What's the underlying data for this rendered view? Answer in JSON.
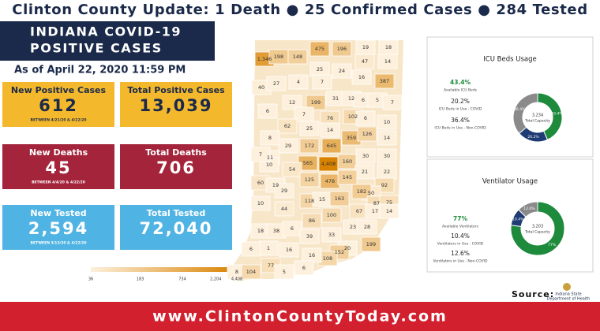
{
  "header": {
    "banner": "Clinton County Update: 1 Death ● 25 Confirmed Cases ● 284 Tested",
    "title_lines": [
      "INDIANA COVID-19",
      "POSITIVE CASES"
    ],
    "as_of": "As of April 22, 2020 11:59 PM"
  },
  "stats": [
    {
      "label": "New Positive Cases",
      "value": "612",
      "note": "BETWEEN 4/21/20 & 4/22/20",
      "color": "#f4b82c"
    },
    {
      "label": "Total Positive Cases",
      "value": "13,039",
      "color": "#f4b82c"
    },
    {
      "label": "New Deaths",
      "value": "45",
      "note": "BETWEEN 4/4/20 & 4/22/20",
      "color": "#a3243b"
    },
    {
      "label": "Total Deaths",
      "value": "706",
      "color": "#a3243b"
    },
    {
      "label": "New Tested",
      "value": "2,594",
      "note": "BETWEEN 3/13/20 & 4/22/20",
      "color": "#4fb3e3"
    },
    {
      "label": "Total Tested",
      "value": "72,040",
      "color": "#4fb3e3"
    }
  ],
  "map": {
    "counties": [
      {
        "label": "1,346",
        "value": 1346
      },
      {
        "label": "198",
        "value": 198
      },
      {
        "label": "148",
        "value": 148
      },
      {
        "label": "475",
        "value": 475
      },
      {
        "label": "196",
        "value": 196
      },
      {
        "label": "19",
        "value": 19
      },
      {
        "label": "18",
        "value": 18
      },
      {
        "label": "47",
        "value": 47
      },
      {
        "label": "14",
        "value": 14
      },
      {
        "label": "25",
        "value": 25
      },
      {
        "label": "24",
        "value": 24
      },
      {
        "label": "16",
        "value": 16
      },
      {
        "label": "387",
        "value": 387
      },
      {
        "label": "40",
        "value": 40
      },
      {
        "label": "27",
        "value": 27
      },
      {
        "label": "4",
        "value": 4
      },
      {
        "label": "7",
        "value": 7
      },
      {
        "label": "12",
        "value": 12
      },
      {
        "label": "199",
        "value": 199
      },
      {
        "label": "31",
        "value": 31
      },
      {
        "label": "12",
        "value": 12
      },
      {
        "label": "6",
        "value": 6
      },
      {
        "label": "5",
        "value": 5
      },
      {
        "label": "7",
        "value": 7
      },
      {
        "label": "6",
        "value": 6
      },
      {
        "label": "7",
        "value": 7
      },
      {
        "label": "76",
        "value": 76
      },
      {
        "label": "102",
        "value": 102
      },
      {
        "label": "6",
        "value": 6
      },
      {
        "label": "10",
        "value": 10
      },
      {
        "label": "62",
        "value": 62
      },
      {
        "label": "25",
        "value": 25
      },
      {
        "label": "14",
        "value": 14
      },
      {
        "label": "8",
        "value": 8
      },
      {
        "label": "359",
        "value": 359
      },
      {
        "label": "126",
        "value": 126
      },
      {
        "label": "14",
        "value": 14
      },
      {
        "label": "29",
        "value": 29
      },
      {
        "label": "172",
        "value": 172
      },
      {
        "label": "645",
        "value": 645
      },
      {
        "label": "11",
        "value": 11
      },
      {
        "label": "10",
        "value": 10
      },
      {
        "label": "7",
        "value": 7
      },
      {
        "label": "565",
        "value": 565
      },
      {
        "label": "4,408",
        "value": 4408
      },
      {
        "label": "160",
        "value": 160
      },
      {
        "label": "30",
        "value": 30
      },
      {
        "label": "30",
        "value": 30
      },
      {
        "label": "54",
        "value": 54
      },
      {
        "label": "21",
        "value": 21
      },
      {
        "label": "22",
        "value": 22
      },
      {
        "label": "125",
        "value": 125
      },
      {
        "label": "478",
        "value": 478
      },
      {
        "label": "145",
        "value": 145
      },
      {
        "label": "60",
        "value": 60
      },
      {
        "label": "19",
        "value": 19
      },
      {
        "label": "29",
        "value": 29
      },
      {
        "label": "92",
        "value": 92
      },
      {
        "label": "50",
        "value": 50
      },
      {
        "label": "182",
        "value": 182
      },
      {
        "label": "118",
        "value": 118
      },
      {
        "label": "15",
        "value": 15
      },
      {
        "label": "163",
        "value": 163
      },
      {
        "label": "10",
        "value": 10
      },
      {
        "label": "44",
        "value": 44
      },
      {
        "label": "100",
        "value": 100
      },
      {
        "label": "67",
        "value": 67
      },
      {
        "label": "87",
        "value": 87
      },
      {
        "label": "75",
        "value": 75
      },
      {
        "label": "17",
        "value": 17
      },
      {
        "label": "14",
        "value": 14
      },
      {
        "label": "86",
        "value": 86
      },
      {
        "label": "18",
        "value": 18
      },
      {
        "label": "38",
        "value": 38
      },
      {
        "label": "6",
        "value": 6
      },
      {
        "label": "39",
        "value": 39
      },
      {
        "label": "33",
        "value": 33
      },
      {
        "label": "23",
        "value": 23
      },
      {
        "label": "28",
        "value": 28
      },
      {
        "label": "199",
        "value": 199
      },
      {
        "label": "1",
        "value": 1
      },
      {
        "label": "6",
        "value": 6
      },
      {
        "label": "16",
        "value": 16
      },
      {
        "label": "20",
        "value": 20
      },
      {
        "label": "152",
        "value": 152
      },
      {
        "label": "108",
        "value": 108
      },
      {
        "label": "16",
        "value": 16
      },
      {
        "label": "8",
        "value": 8
      },
      {
        "label": "104",
        "value": 104
      },
      {
        "label": "77",
        "value": 77
      },
      {
        "label": "5",
        "value": 5
      },
      {
        "label": "6",
        "value": 6
      }
    ],
    "scale": {
      "ticks": [
        36,
        183,
        734,
        {
          "value": 2204,
          "label": "2,204"
        },
        {
          "value": 4408,
          "label": "4,408"
        }
      ],
      "colors": [
        "#fdf0dc",
        "#d98200"
      ]
    }
  },
  "donuts": [
    {
      "title": "ICU Beds Usage",
      "center_value": "3,234",
      "center_label": "Total Capacity",
      "segments": [
        {
          "name": "Available ICU Beds",
          "value": 43.4,
          "value_label": "43.4%",
          "color": "#1e8a3c"
        },
        {
          "name": "ICU Beds in Use - COVID",
          "value": 20.2,
          "value_label": "20.2%",
          "color": "#1f3b73"
        },
        {
          "name": "ICU Beds in Use - Non-COVID",
          "value": 36.4,
          "value_label": "36.4%",
          "color": "#8a8a8a"
        }
      ]
    },
    {
      "title": "Ventilator Usage",
      "center_value": "3,203",
      "center_label": "Total Capacity",
      "segments": [
        {
          "name": "Available Ventilators",
          "value": 77,
          "value_label": "77%",
          "color": "#1e8a3c"
        },
        {
          "name": "Ventilators in Use - COVID",
          "value": 10.4,
          "value_label": "10.4%",
          "color": "#1f3b73"
        },
        {
          "name": "Ventilators in Use - Non-COVID",
          "value": 12.6,
          "value_label": "12.6%",
          "color": "#8a8a8a"
        }
      ]
    }
  ],
  "footer": {
    "source": "Source:",
    "source_org": [
      "Indiana State",
      "Department of Health"
    ],
    "url": "www.ClintonCountyToday.com"
  }
}
